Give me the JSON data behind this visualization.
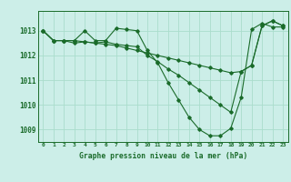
{
  "title": "Graphe pression niveau de la mer (hPa)",
  "xlabel_hours": [
    0,
    1,
    2,
    3,
    4,
    5,
    6,
    7,
    8,
    9,
    10,
    11,
    12,
    13,
    14,
    15,
    16,
    17,
    18,
    19,
    20,
    21,
    22,
    23
  ],
  "ylim": [
    1008.5,
    1013.8
  ],
  "yticks": [
    1009,
    1010,
    1011,
    1012,
    1013
  ],
  "background_color": "#cceee8",
  "grid_color": "#aaddcc",
  "line_color": "#1a6b2a",
  "series1": [
    1013.0,
    1012.6,
    1012.6,
    1012.5,
    1012.55,
    1012.5,
    1012.55,
    1012.45,
    1012.4,
    1012.35,
    1012.0,
    1011.75,
    1011.45,
    1011.2,
    1010.9,
    1010.6,
    1010.3,
    1010.0,
    1009.7,
    1011.35,
    1011.6,
    1013.2,
    1013.4,
    1013.2
  ],
  "series2": [
    1013.0,
    1012.6,
    1012.6,
    1012.6,
    1013.0,
    1012.6,
    1012.6,
    1013.1,
    1013.05,
    1013.0,
    1012.2,
    1011.7,
    1010.9,
    1010.2,
    1009.5,
    1009.0,
    1008.75,
    1008.75,
    1009.05,
    1010.3,
    1013.05,
    1013.3,
    1013.15,
    1013.15
  ],
  "series3": [
    1013.0,
    1012.6,
    1012.6,
    1012.6,
    1012.55,
    1012.5,
    1012.45,
    1012.4,
    1012.3,
    1012.2,
    1012.1,
    1012.0,
    1011.9,
    1011.8,
    1011.7,
    1011.6,
    1011.5,
    1011.4,
    1011.3,
    1011.35,
    1011.6,
    1013.2,
    1013.4,
    1013.2
  ]
}
